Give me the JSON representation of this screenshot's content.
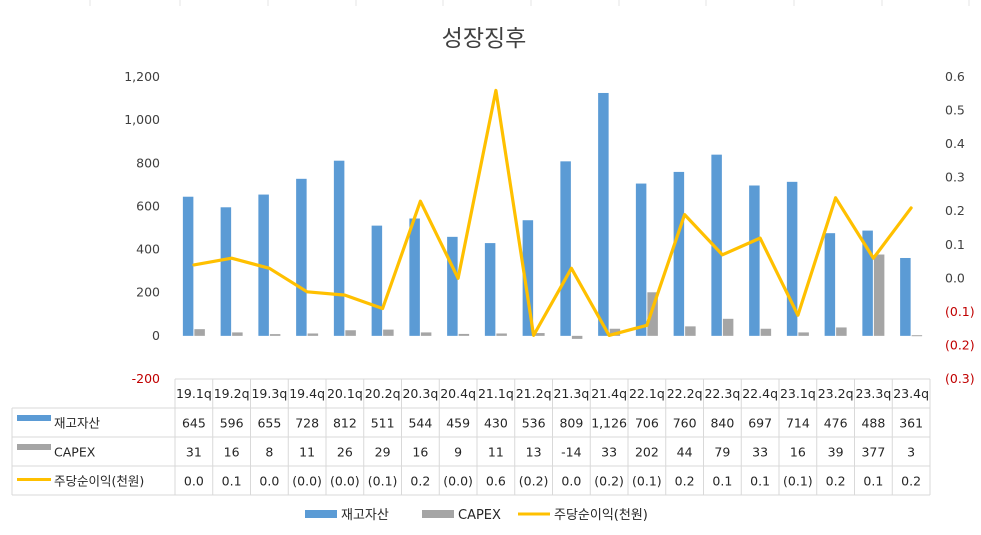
{
  "chart_data": {
    "type": "bar",
    "title": "성장징후",
    "categories": [
      "19.1q",
      "19.2q",
      "19.3q",
      "19.4q",
      "20.1q",
      "20.2q",
      "20.3q",
      "20.4q",
      "21.1q",
      "21.2q",
      "21.3q",
      "21.4q",
      "22.1q",
      "22.2q",
      "22.3q",
      "22.4q",
      "23.1q",
      "23.2q",
      "23.3q",
      "23.4q"
    ],
    "left_axis": {
      "ylim": [
        -200,
        1200
      ],
      "ticks": [
        -200,
        0,
        200,
        400,
        600,
        800,
        1000,
        1200
      ],
      "tick_labels": [
        "-200",
        "0",
        "200",
        "400",
        "600",
        "800",
        "1,000",
        "1,200"
      ]
    },
    "right_axis": {
      "ylim": [
        -0.3,
        0.6
      ],
      "ticks": [
        -0.3,
        -0.2,
        -0.1,
        0.0,
        0.1,
        0.2,
        0.3,
        0.4,
        0.5,
        0.6
      ],
      "tick_labels": [
        "(0.3)",
        "(0.2)",
        "(0.1)",
        "0.0",
        "0.1",
        "0.2",
        "0.3",
        "0.4",
        "0.5",
        "0.6"
      ]
    },
    "series": [
      {
        "name": "재고자산",
        "kind": "bar",
        "axis": "left",
        "color": "#5b9bd5",
        "values": [
          645,
          596,
          655,
          728,
          812,
          511,
          544,
          459,
          430,
          536,
          809,
          1126,
          706,
          760,
          840,
          697,
          714,
          476,
          488,
          361
        ],
        "labels": [
          "645",
          "596",
          "655",
          "728",
          "812",
          "511",
          "544",
          "459",
          "430",
          "536",
          "809",
          "1,126",
          "706",
          "760",
          "840",
          "697",
          "714",
          "476",
          "488",
          "361"
        ]
      },
      {
        "name": "CAPEX",
        "kind": "bar",
        "axis": "left",
        "color": "#a5a5a5",
        "values": [
          31,
          16,
          8,
          11,
          26,
          29,
          16,
          9,
          11,
          13,
          -14,
          33,
          202,
          44,
          79,
          33,
          16,
          39,
          377,
          3
        ],
        "labels": [
          "31",
          "16",
          "8",
          "11",
          "26",
          "29",
          "16",
          "9",
          "11",
          "13",
          "-14",
          "33",
          "202",
          "44",
          "79",
          "33",
          "16",
          "39",
          "377",
          "3"
        ]
      },
      {
        "name": "주당순이익(천원)",
        "kind": "line",
        "axis": "right",
        "color": "#ffc000",
        "values": [
          0.04,
          0.06,
          0.03,
          -0.04,
          -0.05,
          -0.09,
          0.23,
          0.0,
          0.56,
          -0.17,
          0.03,
          -0.17,
          -0.14,
          0.19,
          0.07,
          0.12,
          -0.11,
          0.24,
          0.06,
          0.21
        ],
        "labels": [
          "0.0",
          "0.1",
          "0.0",
          "(0.0)",
          "(0.0)",
          "(0.1)",
          "0.2",
          "(0.0)",
          "0.6",
          "(0.2)",
          "0.0",
          "(0.2)",
          "(0.1)",
          "0.2",
          "0.1",
          "0.1",
          "(0.1)",
          "0.2",
          "0.1",
          "0.2"
        ]
      }
    ],
    "grid": false,
    "legend_placement": "bottom",
    "data_table": true
  }
}
